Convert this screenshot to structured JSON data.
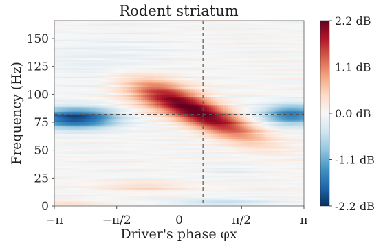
{
  "chart_data": {
    "type": "heatmap",
    "title": "Rodent striatum",
    "xlabel": "Driver's phase φx",
    "ylabel": "Frequency (Hz)",
    "x_range": [
      -3.14159,
      3.14159
    ],
    "y_range": [
      0,
      166
    ],
    "x_ticks": [
      {
        "value": -3.14159,
        "label": "−π"
      },
      {
        "value": -1.5708,
        "label": "−π/2"
      },
      {
        "value": 0,
        "label": "0"
      },
      {
        "value": 1.5708,
        "label": "π/2"
      },
      {
        "value": 3.14159,
        "label": "π"
      }
    ],
    "y_ticks": [
      {
        "value": 0,
        "label": "0"
      },
      {
        "value": 25,
        "label": "25"
      },
      {
        "value": 50,
        "label": "50"
      },
      {
        "value": 75,
        "label": "75"
      },
      {
        "value": 100,
        "label": "100"
      },
      {
        "value": 125,
        "label": "125"
      },
      {
        "value": 150,
        "label": "150"
      }
    ],
    "colorbar": {
      "colormap": "RdBu_r",
      "range": [
        -2.2,
        2.2
      ],
      "ticks": [
        {
          "value": 2.2,
          "label": "2.2 dB"
        },
        {
          "value": 1.1,
          "label": "1.1 dB"
        },
        {
          "value": 0.0,
          "label": "0.0 dB"
        },
        {
          "value": -1.1,
          "label": "-1.1 dB"
        },
        {
          "value": -2.2,
          "label": "-2.2 dB"
        }
      ]
    },
    "reference_lines": [
      {
        "orientation": "vertical",
        "value": 0.6,
        "style": "dashed"
      },
      {
        "orientation": "horizontal",
        "value": 82,
        "style": "dashed"
      }
    ],
    "features": [
      {
        "phase": 0.55,
        "freq": 84,
        "value": 2.2
      },
      {
        "phase": -2.3,
        "freq": 79,
        "value": -1.7
      },
      {
        "phase": 2.8,
        "freq": 82,
        "value": -1.5
      },
      {
        "phase": -0.9,
        "freq": 18,
        "value": 0.4
      },
      {
        "phase": 1.0,
        "freq": 4,
        "value": -0.5
      }
    ],
    "grid": false,
    "colors": {
      "colormap_stops": [
        "#053061",
        "#2166ac",
        "#4393c3",
        "#92c5de",
        "#d1e5f0",
        "#f7f7f7",
        "#fddbc7",
        "#f4a582",
        "#d6604d",
        "#b2182b",
        "#67001f"
      ],
      "reference_line": "#555555",
      "text": "#222222"
    }
  }
}
